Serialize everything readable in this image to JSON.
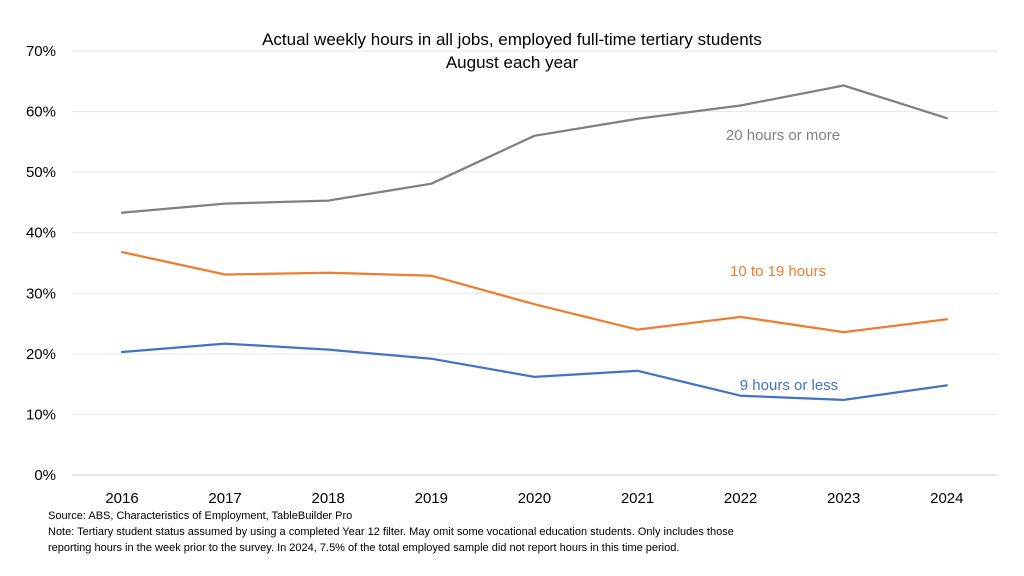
{
  "chart_data": {
    "type": "line",
    "title": "Actual weekly hours in all jobs, employed full-time tertiary students",
    "subtitle": "August each year",
    "xlabel": "",
    "ylabel": "",
    "x": [
      "2016",
      "2017",
      "2018",
      "2019",
      "2020",
      "2021",
      "2022",
      "2023",
      "2024"
    ],
    "ylim": [
      0,
      70
    ],
    "yticks": [
      "0%",
      "10%",
      "20%",
      "30%",
      "40%",
      "50%",
      "60%",
      "70%"
    ],
    "grid": true,
    "series": [
      {
        "name": "20 hours or more",
        "color": "#808080",
        "values": [
          43.3,
          44.8,
          45.3,
          48.1,
          56.0,
          58.8,
          61.0,
          64.3,
          58.9
        ]
      },
      {
        "name": "10 to 19 hours",
        "color": "#ED7D31",
        "values": [
          36.8,
          33.1,
          33.4,
          32.9,
          28.2,
          24.0,
          26.1,
          23.6,
          25.7
        ]
      },
      {
        "name": "9 hours or less",
        "color": "#4472C4",
        "values": [
          20.3,
          21.7,
          20.7,
          19.2,
          16.2,
          17.2,
          13.1,
          12.4,
          14.8
        ]
      }
    ]
  },
  "notes": {
    "source": "Source: ABS, Characteristics of Employment, TableBuilder Pro",
    "note_line1": "Note: Tertiary student status assumed by using a completed Year 12 filter. May omit some vocational education students. Only includes those",
    "note_line2": "reporting hours in the week prior to the survey. In 2024, 7.5% of the total employed sample did not report hours in this time period."
  }
}
